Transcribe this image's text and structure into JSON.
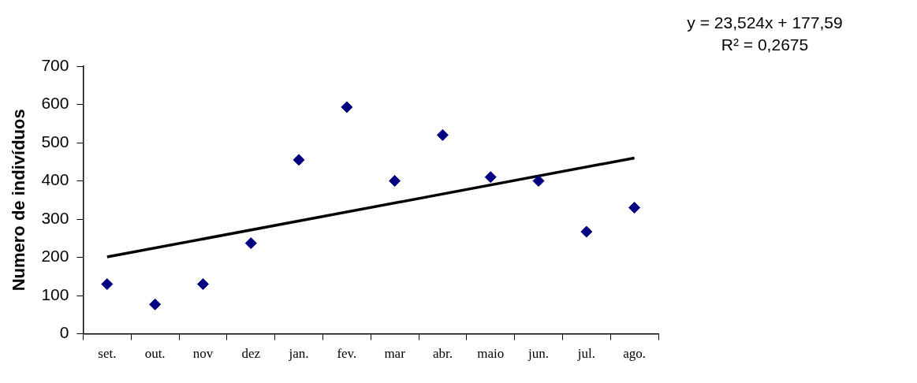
{
  "chart_data": {
    "type": "scatter",
    "ylabel": "Numero de indivíduos",
    "categories": [
      "set.",
      "out.",
      "nov",
      "dez",
      "jan.",
      "fev.",
      "mar",
      "abr.",
      "maio",
      "jun.",
      "jul.",
      "ago."
    ],
    "series": [
      {
        "type": "scatter",
        "color": "#000080",
        "marker": "diamond",
        "values": [
          130,
          77,
          130,
          237,
          455,
          593,
          400,
          520,
          410,
          400,
          267,
          330
        ]
      },
      {
        "type": "line",
        "color": "#000000",
        "marker": "none",
        "line_style": "solid",
        "values": [
          201,
          null,
          null,
          null,
          null,
          null,
          null,
          null,
          null,
          null,
          null,
          460
        ]
      }
    ],
    "ylim": [
      0,
      700
    ],
    "yticks": [
      0,
      100,
      200,
      300,
      400,
      500,
      600,
      700
    ],
    "grid": false,
    "legend": false,
    "annotations": [
      "y = 23,524x + 177,59",
      "R² = 0,2675"
    ]
  }
}
